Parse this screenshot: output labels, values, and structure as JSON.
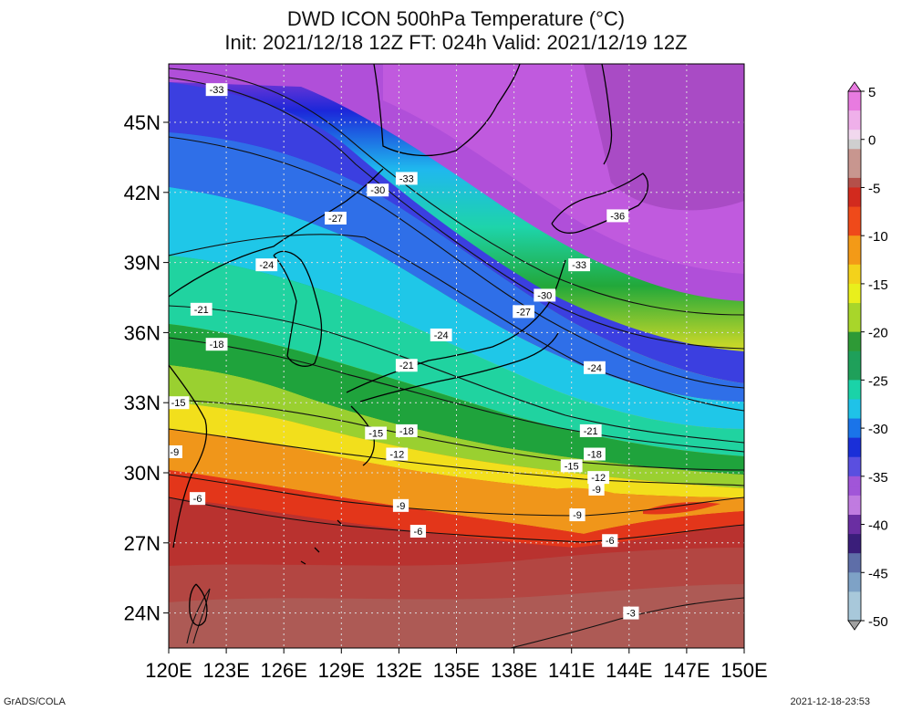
{
  "title": "DWD ICON 500hPa Temperature (°C)",
  "subtitle": "Init: 2021/12/18 12Z  FT: 024h  Valid: 2021/12/19 12Z",
  "footer_left": "GrADS/COLA",
  "footer_right": "2021-12-18-23:53",
  "map": {
    "lon_range": [
      120,
      150
    ],
    "lat_range": [
      22.5,
      47.5
    ],
    "lon_labels": [
      "120E",
      "123E",
      "126E",
      "129E",
      "132E",
      "135E",
      "138E",
      "141E",
      "144E",
      "147E",
      "150E"
    ],
    "lat_labels": [
      "45N",
      "42N",
      "39N",
      "36N",
      "33N",
      "30N",
      "27N",
      "24N"
    ],
    "lon_ticks": [
      120,
      123,
      126,
      129,
      132,
      135,
      138,
      141,
      144,
      147,
      150
    ],
    "lat_ticks": [
      45,
      42,
      39,
      36,
      33,
      30,
      27,
      24
    ],
    "grid": true
  },
  "colorbar": {
    "labels": [
      "5",
      "0",
      "-5",
      "-10",
      "-15",
      "-20",
      "-25",
      "-30",
      "-35",
      "-40",
      "-45",
      "-50"
    ],
    "label_values": [
      5,
      0,
      -5,
      -10,
      -15,
      -20,
      -25,
      -30,
      -35,
      -40,
      -45,
      -50
    ],
    "min": -50,
    "max": 5,
    "step": 1
  },
  "contour_labels": [
    {
      "text": "-33",
      "lon": 122.5,
      "lat": 46.4
    },
    {
      "text": "-33",
      "lon": 132.4,
      "lat": 42.6
    },
    {
      "text": "-30",
      "lon": 130.9,
      "lat": 42.1
    },
    {
      "text": "-27",
      "lon": 128.7,
      "lat": 40.9
    },
    {
      "text": "-36",
      "lon": 143.4,
      "lat": 41.0
    },
    {
      "text": "-24",
      "lon": 125.1,
      "lat": 38.9
    },
    {
      "text": "-33",
      "lon": 141.4,
      "lat": 38.9
    },
    {
      "text": "-30",
      "lon": 139.6,
      "lat": 37.6
    },
    {
      "text": "-27",
      "lon": 138.5,
      "lat": 36.9
    },
    {
      "text": "-21",
      "lon": 121.7,
      "lat": 37.0
    },
    {
      "text": "-24",
      "lon": 134.2,
      "lat": 35.9
    },
    {
      "text": "-18",
      "lon": 122.5,
      "lat": 35.5
    },
    {
      "text": "-21",
      "lon": 132.4,
      "lat": 34.6
    },
    {
      "text": "-24",
      "lon": 142.2,
      "lat": 34.5
    },
    {
      "text": "-15",
      "lon": 120.5,
      "lat": 33.0
    },
    {
      "text": "-15",
      "lon": 130.8,
      "lat": 31.7
    },
    {
      "text": "-18",
      "lon": 132.4,
      "lat": 31.8
    },
    {
      "text": "-21",
      "lon": 142.0,
      "lat": 31.8
    },
    {
      "text": "-18",
      "lon": 142.2,
      "lat": 30.8
    },
    {
      "text": "-9",
      "lon": 120.3,
      "lat": 30.9
    },
    {
      "text": "-12",
      "lon": 131.9,
      "lat": 30.8
    },
    {
      "text": "-15",
      "lon": 141.0,
      "lat": 30.3
    },
    {
      "text": "-12",
      "lon": 142.4,
      "lat": 29.8
    },
    {
      "text": "-9",
      "lon": 142.3,
      "lat": 29.3
    },
    {
      "text": "-6",
      "lon": 121.5,
      "lat": 28.9
    },
    {
      "text": "-9",
      "lon": 132.1,
      "lat": 28.6
    },
    {
      "text": "-9",
      "lon": 141.3,
      "lat": 28.2
    },
    {
      "text": "-6",
      "lon": 133.0,
      "lat": 27.5
    },
    {
      "text": "-6",
      "lon": 143.0,
      "lat": 27.1
    },
    {
      "text": "-3",
      "lon": 144.1,
      "lat": 24.0
    }
  ]
}
